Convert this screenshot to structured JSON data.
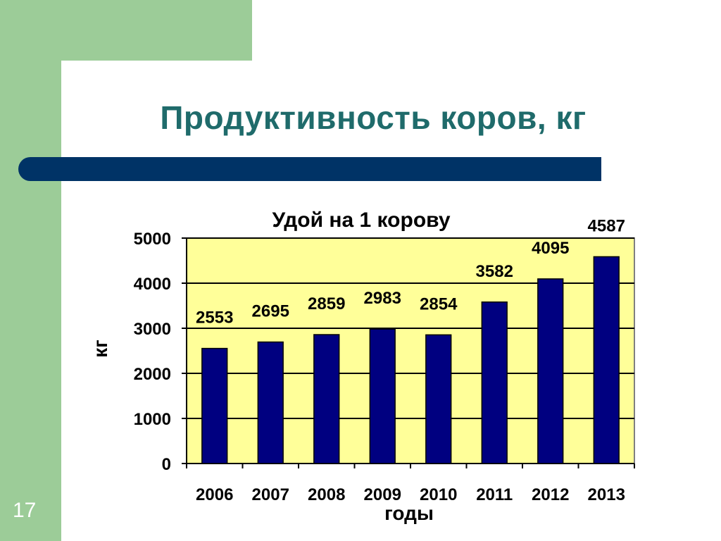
{
  "slide": {
    "title": "Продуктивность коров, кг",
    "number": "17"
  },
  "colors": {
    "sidebar": "#9ccc98",
    "title": "#1f6b6b",
    "rule_bar": "#003366",
    "plot_bg": "#ffff99",
    "bar": "#000080"
  },
  "chart_data": {
    "type": "bar",
    "title": "Удой на 1 корову",
    "xlabel": "годы",
    "ylabel": "кг",
    "categories": [
      "2006",
      "2007",
      "2008",
      "2009",
      "2010",
      "2011",
      "2012",
      "2013"
    ],
    "values": [
      2553,
      2695,
      2859,
      2983,
      2854,
      3582,
      4095,
      4587
    ],
    "data_labels": [
      "2553",
      "2695",
      "2859",
      "2983",
      "2854",
      "3582",
      "4095",
      "4587"
    ],
    "ylim": [
      0,
      5000
    ],
    "yticks": [
      0,
      1000,
      2000,
      3000,
      4000,
      5000
    ],
    "grid": true,
    "legend": "none"
  }
}
